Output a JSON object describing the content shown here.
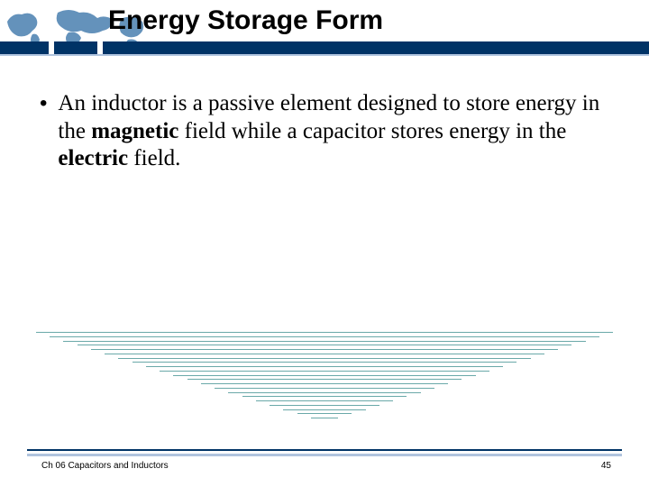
{
  "slide": {
    "title": "Energy Storage Form",
    "bullet_prefix": "An inductor is a passive element designed to store energy in the ",
    "bold1": "magnetic",
    "middle": " field while a capacitor stores energy in the ",
    "bold2": "electric",
    "suffix": " field.",
    "footer": "Ch 06 Capacitors and Inductors",
    "page": "45"
  },
  "style": {
    "title_fontsize": 30,
    "body_fontsize": 25,
    "footer_fontsize": 10,
    "title_bar_color": "#003366",
    "title_bar_accent": "#b0c4de",
    "triangle_line_color": "#6aa9a9",
    "triangle_line_count": 22,
    "triangle_base_width": 640,
    "triangle_height": 100,
    "background": "#ffffff",
    "map_silhouette_color": "#4a7fb0",
    "text_color": "#000000",
    "body_font": "Times New Roman",
    "title_font": "Arial"
  }
}
